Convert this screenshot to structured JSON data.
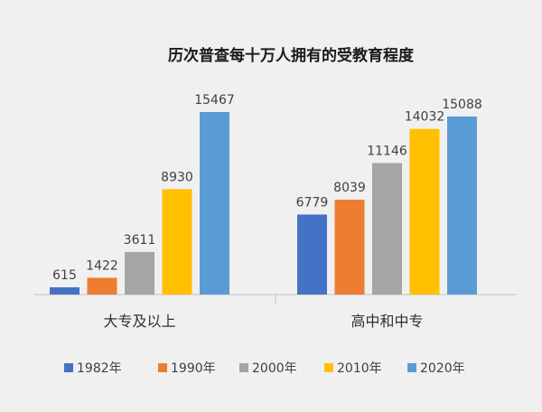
{
  "chart_data": {
    "type": "bar",
    "title": "历次普查每十万人拥有的受教育程度",
    "categories": [
      "大专及以上",
      "高中和中专"
    ],
    "series": [
      {
        "name": "1982年",
        "color": "#4472c4",
        "values": [
          615,
          6779
        ]
      },
      {
        "name": "1990年",
        "color": "#ed7d31",
        "values": [
          1422,
          8039
        ]
      },
      {
        "name": "2000年",
        "color": "#a5a5a5",
        "values": [
          3611,
          11146
        ]
      },
      {
        "name": "2010年",
        "color": "#ffc000",
        "values": [
          8930,
          14032
        ]
      },
      {
        "name": "2020年",
        "color": "#5b9bd5",
        "values": [
          15467,
          15088
        ]
      }
    ],
    "ylim": [
      0,
      15467
    ],
    "legend_position": "bottom",
    "grid": false
  }
}
